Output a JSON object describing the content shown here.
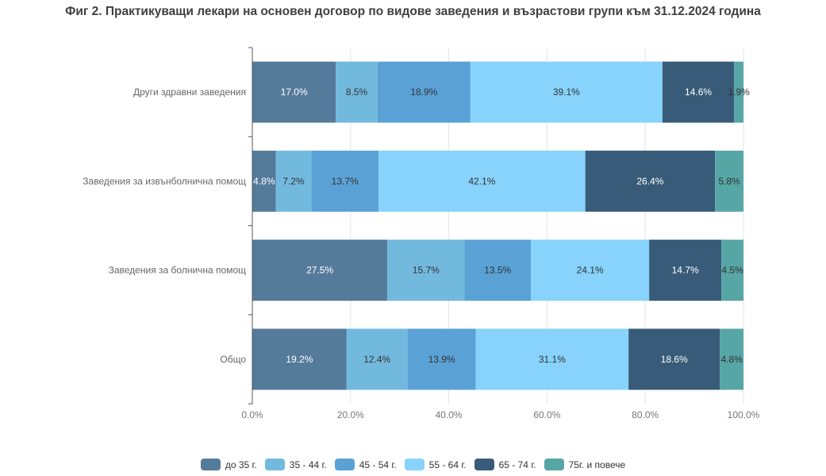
{
  "chart_data": {
    "type": "bar",
    "orientation": "horizontal",
    "stacked": true,
    "title": "Фиг 2. Практикуващи лекари на основен договор по видове заведения и възрастови групи към 31.12.2024 година",
    "categories": [
      "Други здравни заведения",
      "Заведения за извънболнична помощ",
      "Заведения за болнична помощ",
      "Общо"
    ],
    "series": [
      {
        "name": "до 35 г.",
        "color": "#557b9b",
        "label_color": "#ffffff",
        "values": [
          17.0,
          4.8,
          27.5,
          19.2
        ]
      },
      {
        "name": "35 - 44 г.",
        "color": "#72b9de",
        "label_color": "#333333",
        "values": [
          8.5,
          7.2,
          15.7,
          12.4
        ]
      },
      {
        "name": "45 - 54 г.",
        "color": "#5aa2d6",
        "label_color": "#333333",
        "values": [
          18.9,
          13.7,
          13.5,
          13.9
        ]
      },
      {
        "name": "55 - 64 г.",
        "color": "#87d3fb",
        "label_color": "#333333",
        "values": [
          39.1,
          42.1,
          24.1,
          31.1
        ]
      },
      {
        "name": "65 - 74 г.",
        "color": "#375b78",
        "label_color": "#ffffff",
        "values": [
          14.6,
          26.4,
          14.7,
          18.6
        ]
      },
      {
        "name": "75г. и повече",
        "color": "#57a6a6",
        "label_color": "#333333",
        "values": [
          1.9,
          5.8,
          4.5,
          4.8
        ]
      }
    ],
    "data_labels": [
      [
        "17.0%",
        "4.8%",
        "27.5%",
        "19.2%"
      ],
      [
        "8.5%",
        "7.2%",
        "15.7%",
        "12.4%"
      ],
      [
        "18.9%",
        "13.7%",
        "13.5%",
        "13.9%"
      ],
      [
        "39.1%",
        "42.1%",
        "24.1%",
        "31.1%"
      ],
      [
        "14.6%",
        "26.4%",
        "14.7%",
        "18.6%"
      ],
      [
        "1.9%",
        "5.8%",
        "4.5%",
        "4.8%"
      ]
    ],
    "xlim": [
      0,
      100
    ],
    "xticks": [
      0,
      20,
      40,
      60,
      80,
      100
    ],
    "xtick_labels": [
      "0.0%",
      "20.0%",
      "40.0%",
      "60.0%",
      "80.0%",
      "100.0%"
    ],
    "xlabel": "",
    "ylabel": "",
    "grid": true,
    "legend_position": "bottom"
  }
}
